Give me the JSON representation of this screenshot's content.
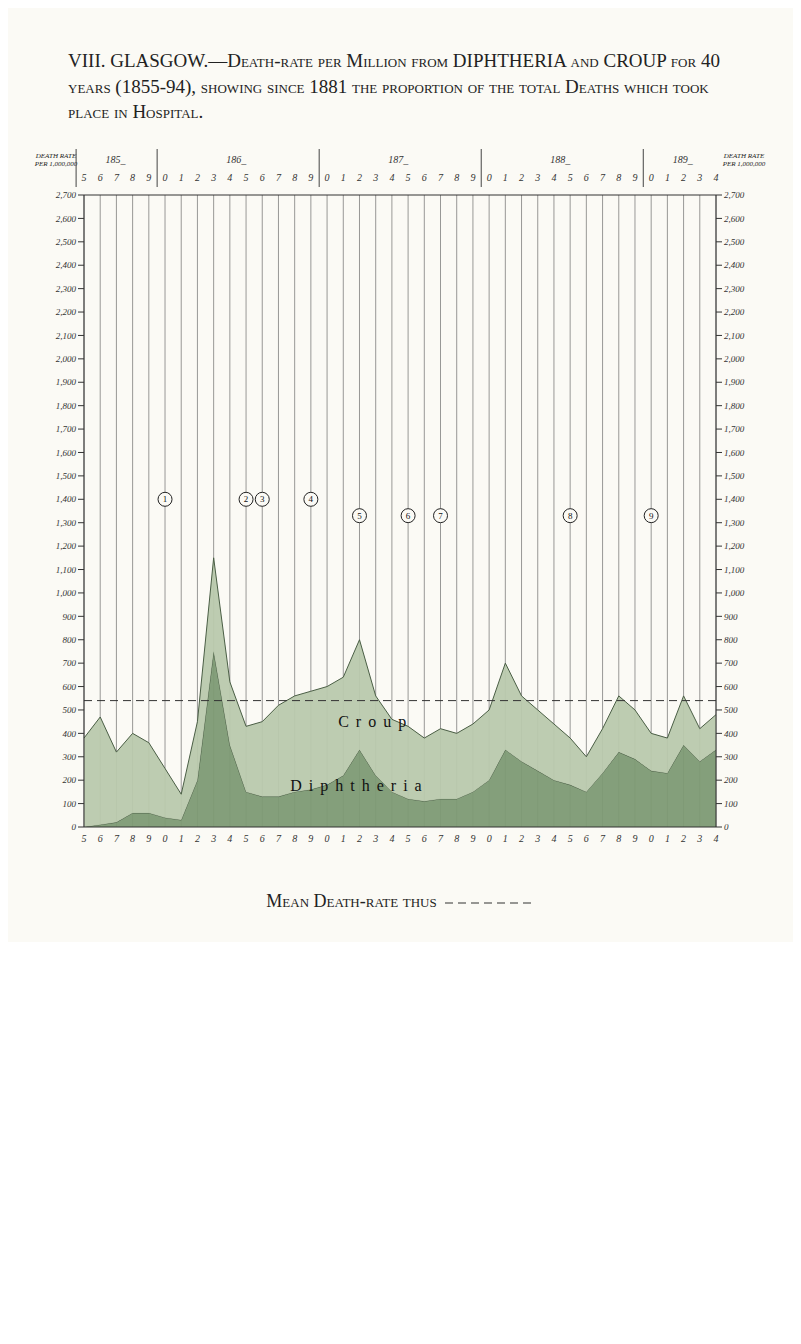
{
  "chart_data": {
    "type": "area",
    "stacked": true,
    "title": "VIII. GLASGOW.—Death-rate per Million from DIPHTHERIA and CROUP for 40 years (1855-94), showing since 1881 the proportion of the total Deaths which took place in Hospital.",
    "y_label": "DEATH RATE PER 1,000,000",
    "categories": [
      "5",
      "6",
      "7",
      "8",
      "9",
      "0",
      "1",
      "2",
      "3",
      "4",
      "5",
      "6",
      "7",
      "8",
      "9",
      "0",
      "1",
      "2",
      "3",
      "4",
      "5",
      "6",
      "7",
      "8",
      "9",
      "0",
      "1",
      "2",
      "3",
      "4",
      "5",
      "6",
      "7",
      "8",
      "9",
      "0",
      "1",
      "2",
      "3",
      "4"
    ],
    "decades": [
      {
        "label": "185_",
        "span": 5
      },
      {
        "label": "186_",
        "span": 10
      },
      {
        "label": "187_",
        "span": 10
      },
      {
        "label": "188_",
        "span": 10
      },
      {
        "label": "189_",
        "span": 5
      }
    ],
    "series": [
      {
        "name": "Diphtheria",
        "color": "#7d9a74",
        "values": [
          0,
          10,
          20,
          60,
          60,
          40,
          30,
          200,
          750,
          350,
          150,
          130,
          130,
          150,
          160,
          180,
          220,
          330,
          220,
          150,
          120,
          110,
          120,
          120,
          150,
          200,
          330,
          280,
          240,
          200,
          180,
          150,
          230,
          320,
          290,
          240,
          230,
          350,
          280,
          330
        ],
        "label_position": 17,
        "label_y": 180
      },
      {
        "name": "Croup",
        "color": "#b9c9ad",
        "values": [
          380,
          460,
          300,
          340,
          300,
          210,
          110,
          250,
          400,
          270,
          280,
          320,
          390,
          410,
          420,
          420,
          420,
          470,
          340,
          310,
          310,
          270,
          300,
          280,
          290,
          300,
          370,
          280,
          260,
          240,
          200,
          150,
          190,
          240,
          210,
          160,
          150,
          210,
          140,
          150
        ],
        "label_position": 18,
        "label_y": 450
      }
    ],
    "mean": 540,
    "mean_label": "Mean Death-rate thus",
    "ylim": [
      0,
      2700
    ],
    "yticks": [
      0,
      100,
      200,
      300,
      400,
      500,
      600,
      700,
      800,
      900,
      {
        "value": 1000,
        "label": "1,000"
      },
      {
        "value": 1100,
        "label": "1,100"
      },
      {
        "value": 1200,
        "label": "1,200"
      },
      {
        "value": 1300,
        "label": "1,300"
      },
      {
        "value": 1400,
        "label": "1,400"
      },
      {
        "value": 1500,
        "label": "1,500"
      },
      {
        "value": 1600,
        "label": "1,600"
      },
      {
        "value": 1700,
        "label": "1,700"
      },
      {
        "value": 1800,
        "label": "1,800"
      },
      {
        "value": 1900,
        "label": "1,900"
      },
      {
        "value": 2000,
        "label": "2,000"
      },
      {
        "value": 2100,
        "label": "2,100"
      },
      {
        "value": 2200,
        "label": "2,200"
      },
      {
        "value": 2300,
        "label": "2,300"
      },
      {
        "value": 2400,
        "label": "2,400"
      },
      {
        "value": 2500,
        "label": "2,500"
      },
      {
        "value": 2600,
        "label": "2,600"
      },
      {
        "value": 2700,
        "label": "2,700"
      }
    ],
    "grid": "x",
    "annotations": [
      {
        "label": "1",
        "position": 5,
        "y": 1400
      },
      {
        "label": "2",
        "position": 10,
        "y": 1400
      },
      {
        "label": "3",
        "position": 11,
        "y": 1400
      },
      {
        "label": "4",
        "position": 14,
        "y": 1400
      },
      {
        "label": "5",
        "position": 17,
        "y": 1330
      },
      {
        "label": "6",
        "position": 20,
        "y": 1330
      },
      {
        "label": "7",
        "position": 22,
        "y": 1330
      },
      {
        "label": "8",
        "position": 30,
        "y": 1330
      },
      {
        "label": "9",
        "position": 35,
        "y": 1330
      }
    ]
  }
}
